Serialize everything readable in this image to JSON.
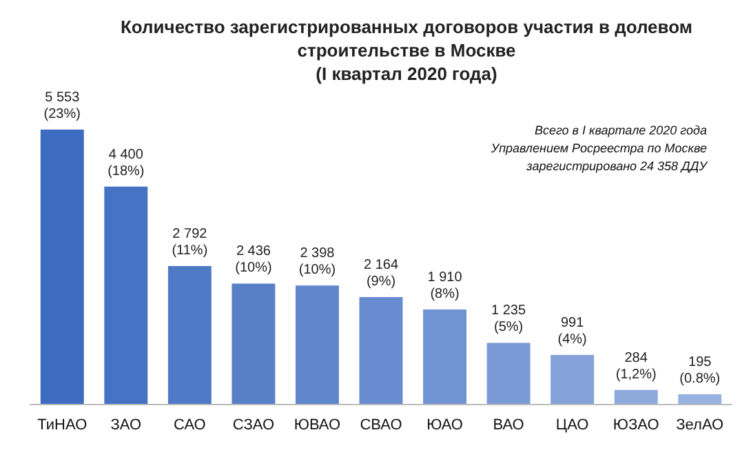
{
  "chart_data": {
    "type": "bar",
    "title": "Количество зарегистрированных договоров участия в долевом\nстроительстве в Москве\n(I квартал 2020 года)",
    "categories": [
      "ТиНАО",
      "ЗАО",
      "САО",
      "СЗАО",
      "ЮВАО",
      "СВАО",
      "ЮАО",
      "ВАО",
      "ЦАО",
      "ЮЗАО",
      "ЗелАО"
    ],
    "values": [
      5553,
      4400,
      2792,
      2436,
      2398,
      2164,
      1910,
      1235,
      991,
      284,
      195
    ],
    "value_labels": [
      "5 553\n(23%)",
      "4 400\n(18%)",
      "2 792\n(11%)",
      "2 436\n(10%)",
      "2 398\n(10%)",
      "2 164\n(9%)",
      "1 910\n(8%)",
      "1 235\n(5%)",
      "991\n(4%)",
      "284\n(1,2%)",
      "195\n(0.8%)"
    ],
    "colors": [
      "#3d6cc0",
      "#4673c4",
      "#5079c6",
      "#5880c9",
      "#6086cc",
      "#688ccf",
      "#7093d3",
      "#7a9ad6",
      "#84a2da",
      "#8eaadd",
      "#98b2e0"
    ],
    "annotations": [
      "Всего в I квартале 2020 года\nУправлением Росреестра по Москве\nзарегистрировано 24 358 ДДУ"
    ],
    "tick_labels": "x"
  }
}
